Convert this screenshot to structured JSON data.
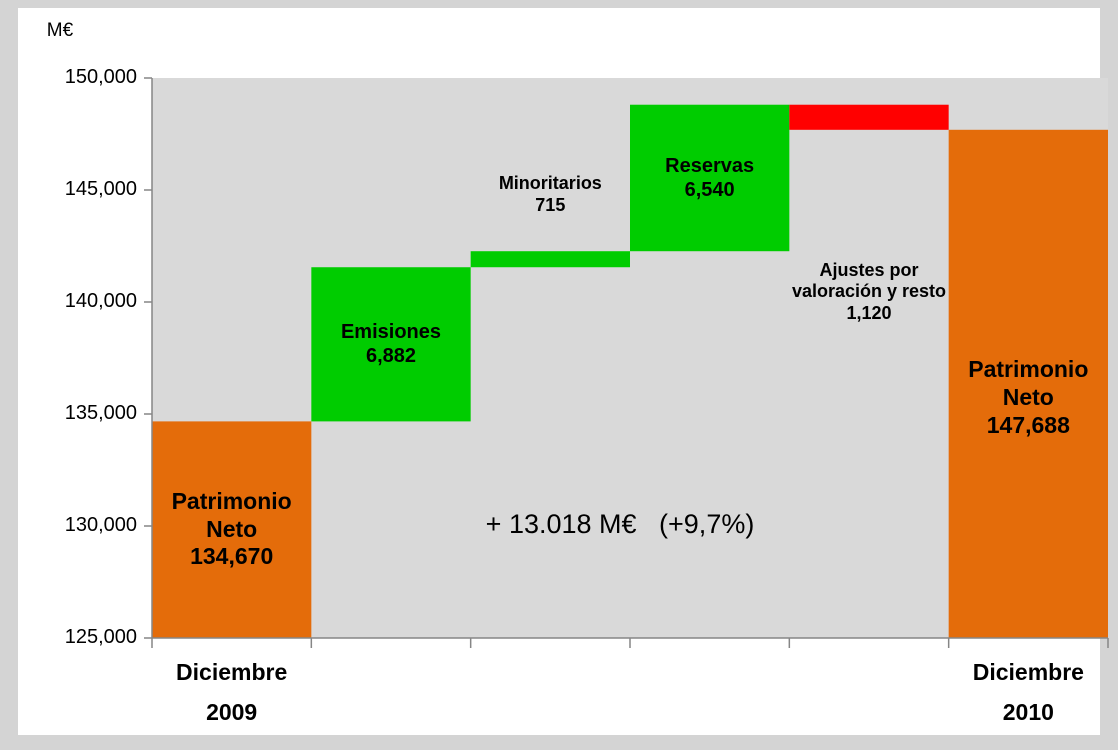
{
  "chart_data": {
    "type": "waterfall",
    "y_axis_label": "M€",
    "categories": [
      "Diciembre 2009",
      null,
      null,
      null,
      null,
      "Diciembre 2010"
    ],
    "names": [
      "Patrimonio Neto",
      "Emisiones",
      "Minoritarios",
      "Reservas",
      "Ajustes por valoración y resto",
      "Patrimonio Neto"
    ],
    "values": [
      134670,
      6882,
      715,
      6540,
      -1120,
      147688
    ],
    "value_labels": [
      "134,670",
      "6,882",
      "715",
      "6,540",
      "1,120",
      "147,688"
    ],
    "measures": [
      "total",
      "relative",
      "relative",
      "relative",
      "relative",
      "total"
    ],
    "colors": {
      "total": "#e46c0a",
      "increase": "#00cc00",
      "decrease": "#ff0000"
    },
    "annotation": "+ 13.018 M€   (+9,7%)",
    "ylim": [
      125000,
      150000
    ],
    "yticks": [
      {
        "value": 125000,
        "label": "125,000"
      },
      {
        "value": 130000,
        "label": "130,000"
      },
      {
        "value": 135000,
        "label": "135,000"
      },
      {
        "value": 140000,
        "label": "140,000"
      },
      {
        "value": 145000,
        "label": "145,000"
      },
      {
        "value": 150000,
        "label": "150,000"
      }
    ]
  }
}
